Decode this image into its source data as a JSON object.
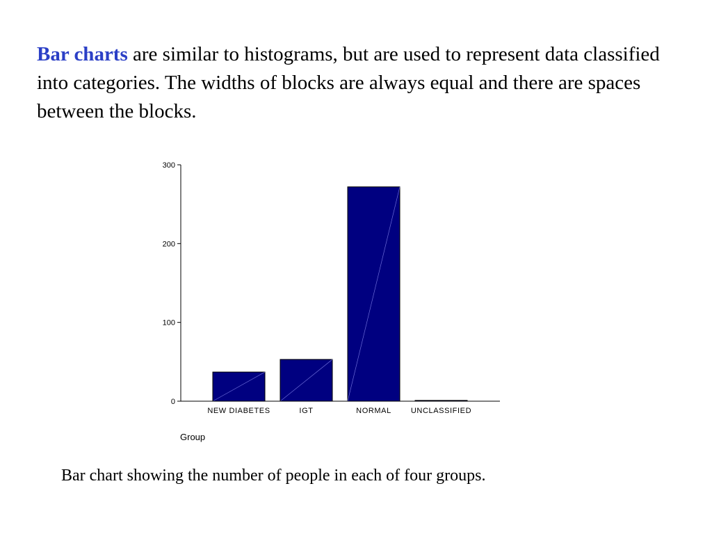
{
  "intro": {
    "highlight": "Bar charts",
    "rest": " are similar to histograms, but are used to represent data classified into categories. The widths of blocks are always equal and there are spaces between the blocks."
  },
  "caption": "Bar chart showing the number of people in each of four groups.",
  "colors": {
    "highlight": "#2b3fc6",
    "bar_fill": "#000080",
    "bar_stroke": "#000000",
    "bar_diagonal": "#6b6bd6"
  },
  "chart_data": {
    "type": "bar",
    "categories": [
      "NEW DIABETES",
      "IGT",
      "NORMAL",
      "UNCLASSIFIED"
    ],
    "values": [
      37,
      53,
      272,
      1
    ],
    "title": "",
    "xlabel": "Group",
    "ylabel": "",
    "ylim": [
      0,
      300
    ],
    "yticks": [
      0,
      100,
      200,
      300
    ],
    "grid": false,
    "legend": "none"
  }
}
